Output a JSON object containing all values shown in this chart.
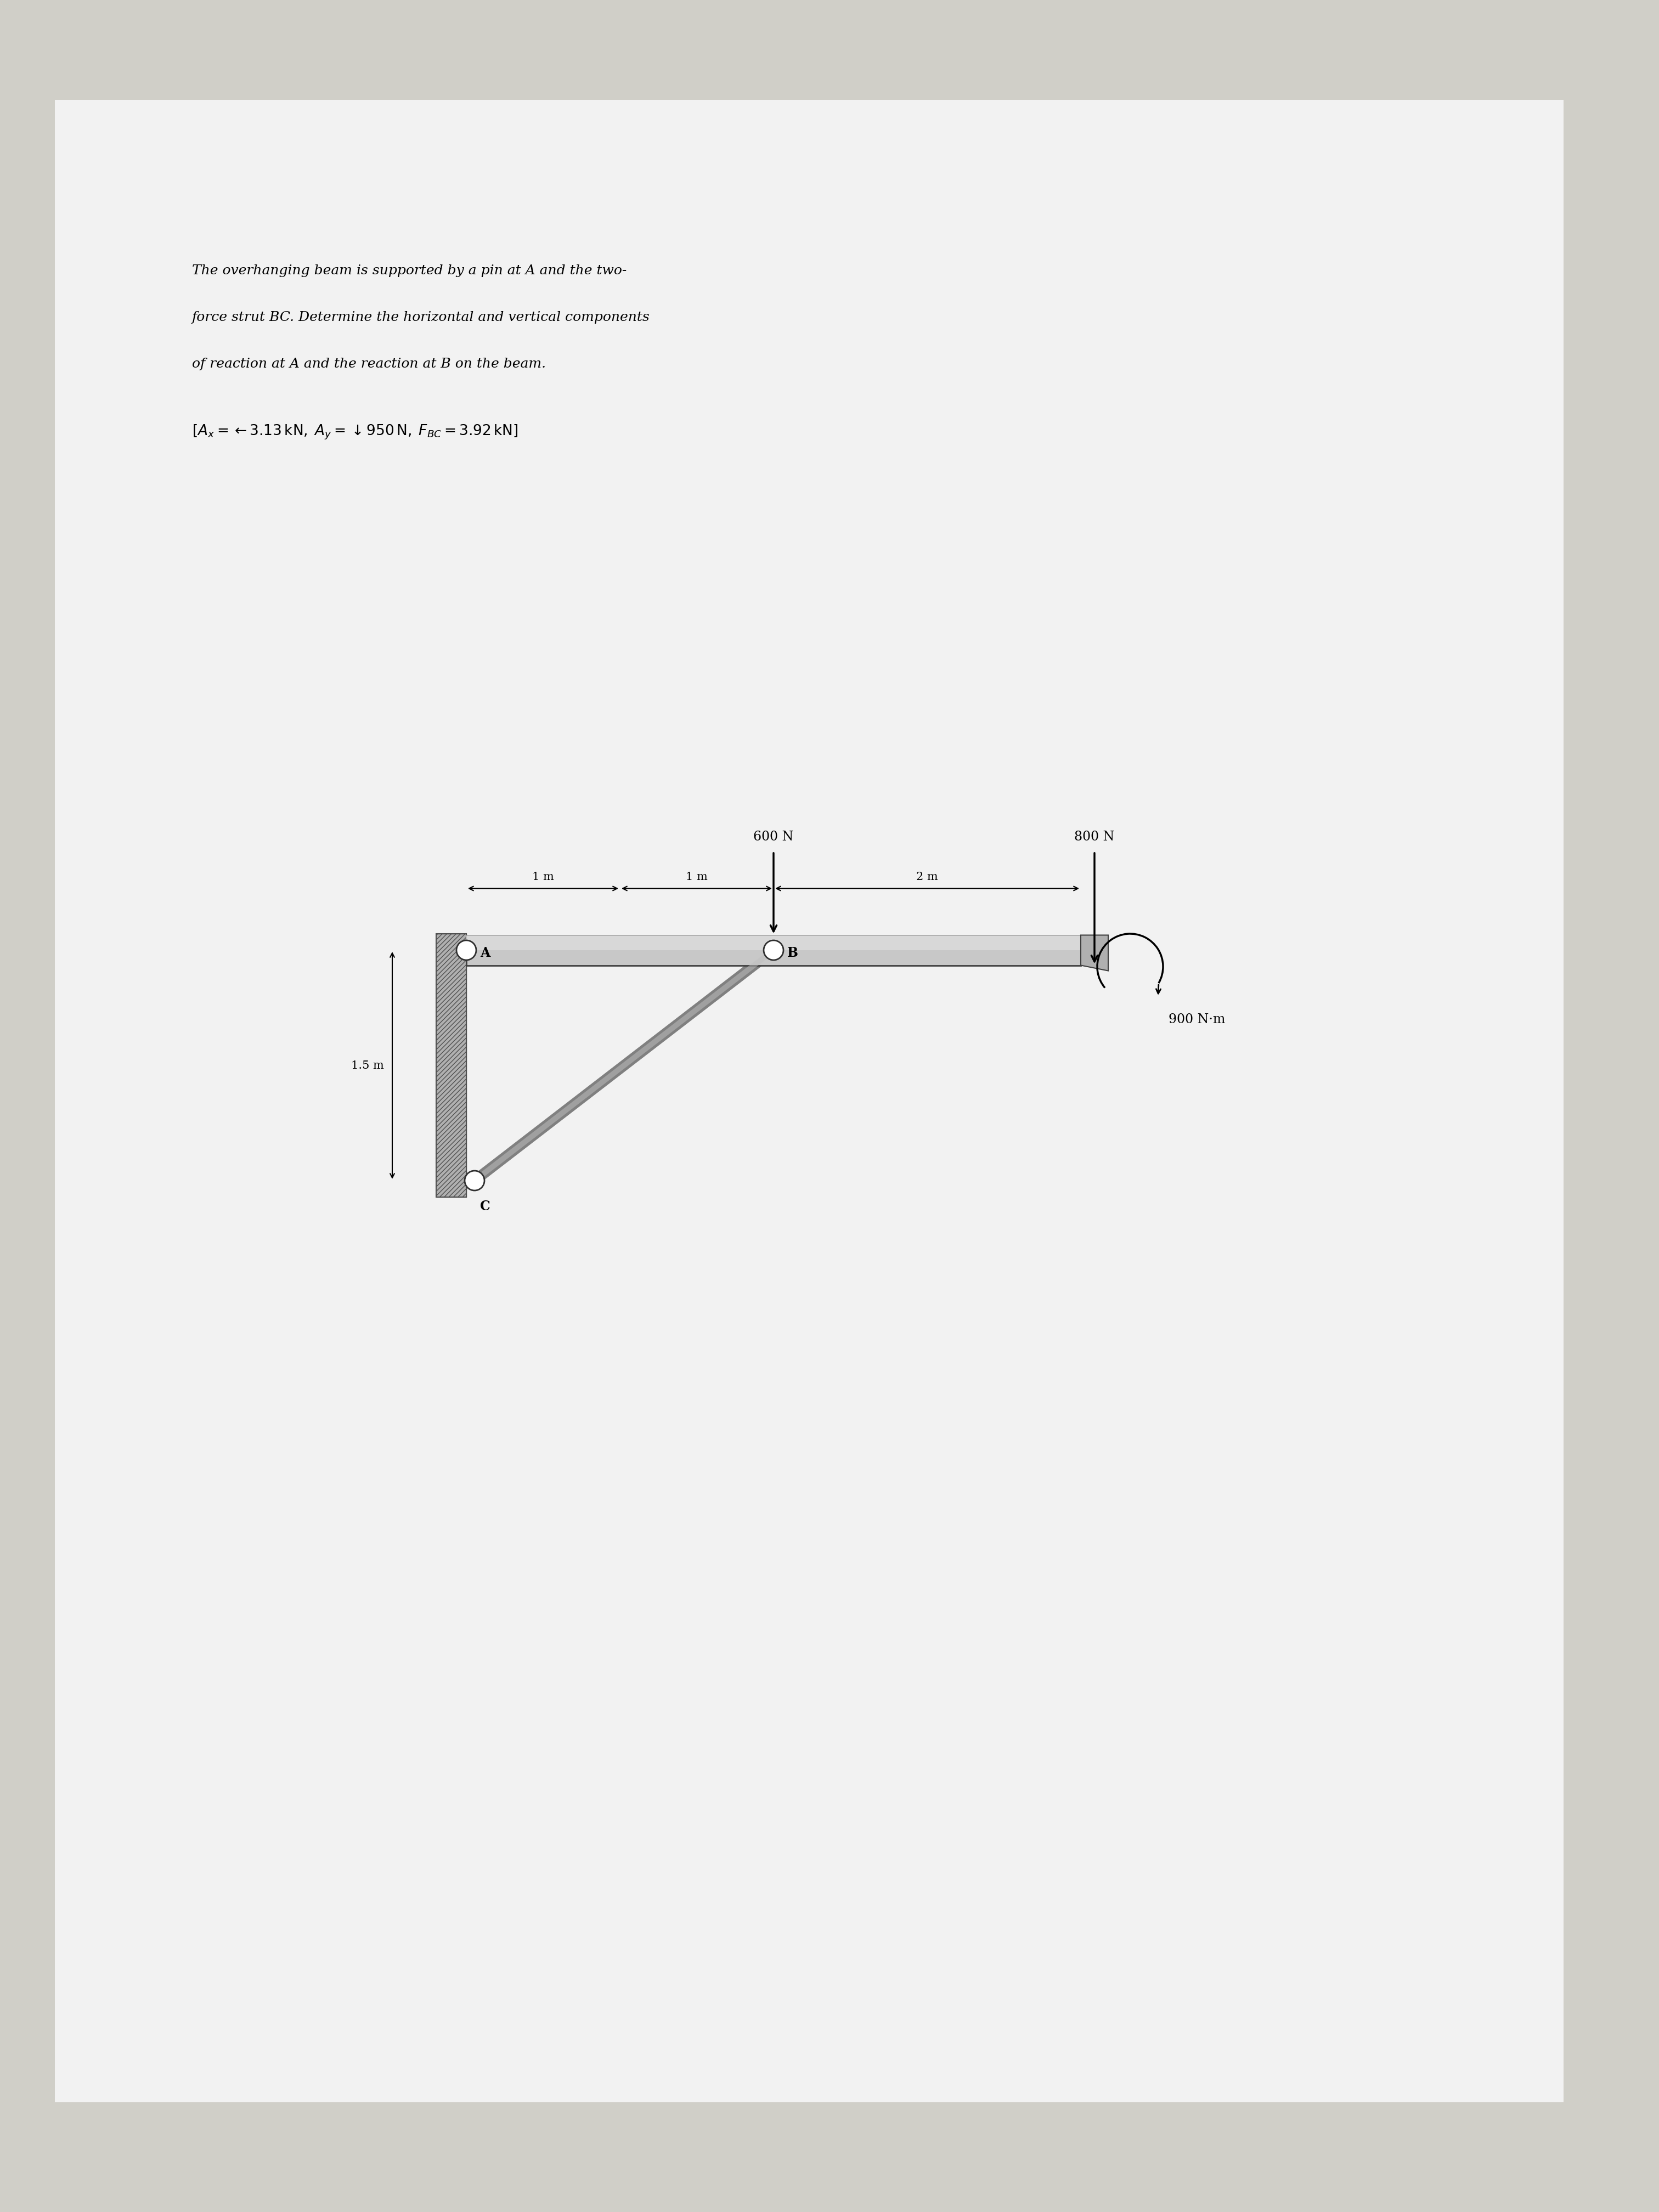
{
  "bg_color": "#e8e8e8",
  "paper_color": "#f0f0f0",
  "problem_text_line1": "The overhanging beam is supported by a pin at A and the two-",
  "problem_text_line2": "force strut BC. Determine the horizontal and vertical components",
  "problem_text_line3": "of reaction at A and the reaction at B on the beam.",
  "answer_text": "$[A_x = \\leftarrow 3.13\\,\\mathrm{kN},\\; A_y = \\downarrow 950\\,\\mathrm{N},\\; F_{BC} = 3.92\\,\\mathrm{kN}]$",
  "force_600N": "600 N",
  "force_800N": "800 N",
  "moment_900Nm": "900 N·m",
  "dim_1m_left": "1 m",
  "dim_1m_right": "1 m",
  "dim_2m": "2 m",
  "dim_15m": "1.5 m",
  "label_A": "A",
  "label_B": "B",
  "label_C": "C"
}
